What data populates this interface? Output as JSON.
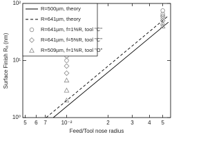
{
  "chart_data": {
    "type": "scatter",
    "xlabel": "Feed/Tool nose radius",
    "ylabel": "Surface Finish Rₐ (nm)",
    "xlog": true,
    "ylog": true,
    "xlim": [
      0.0048,
      0.057
    ],
    "ylim": [
      1,
      100
    ],
    "xticks": [
      {
        "value": 0.005,
        "label": "5"
      },
      {
        "value": 0.006,
        "label": "6"
      },
      {
        "value": 0.007,
        "label": "7"
      },
      {
        "value": 0.01,
        "label": "10⁻²"
      },
      {
        "value": 0.02,
        "label": "2"
      },
      {
        "value": 0.03,
        "label": "3"
      },
      {
        "value": 0.04,
        "label": "4"
      },
      {
        "value": 0.05,
        "label": "5"
      }
    ],
    "yticks": [
      {
        "value": 1,
        "label": "10⁰"
      },
      {
        "value": 10,
        "label": "10¹"
      },
      {
        "value": 100,
        "label": "10²"
      }
    ],
    "legend": "top-left",
    "series": [
      {
        "name": "R=500µm, theory",
        "mode": "line",
        "dash": false,
        "color": "#000000",
        "x": [
          0.008,
          0.055
        ],
        "values": [
          1.0,
          47
        ]
      },
      {
        "name": "R=641µm, theory",
        "mode": "line",
        "dash": true,
        "color": "#000000",
        "x": [
          0.0071,
          0.055
        ],
        "values": [
          1.0,
          61
        ]
      },
      {
        "name": "R=641µm, f=1%R, tool \"C\"",
        "mode": "marker",
        "marker": "circle",
        "color": "#888888",
        "x": [
          0.01,
          0.01,
          0.01,
          0.01,
          0.05,
          0.05,
          0.05
        ],
        "values": [
          10,
          12,
          15,
          18,
          55,
          65,
          75
        ]
      },
      {
        "name": "R=641µm, f=5%R, tool \"C\"",
        "mode": "marker",
        "marker": "diamond",
        "color": "#888888",
        "x": [
          0.01,
          0.01,
          0.05,
          0.05
        ],
        "values": [
          6,
          8,
          50,
          60
        ]
      },
      {
        "name": "R=509µm, f=1%R, tool \"O\"",
        "mode": "marker",
        "marker": "triangle",
        "color": "#888888",
        "x": [
          0.01,
          0.01,
          0.01,
          0.05,
          0.05
        ],
        "values": [
          2,
          3,
          4.5,
          40,
          45
        ]
      }
    ]
  }
}
